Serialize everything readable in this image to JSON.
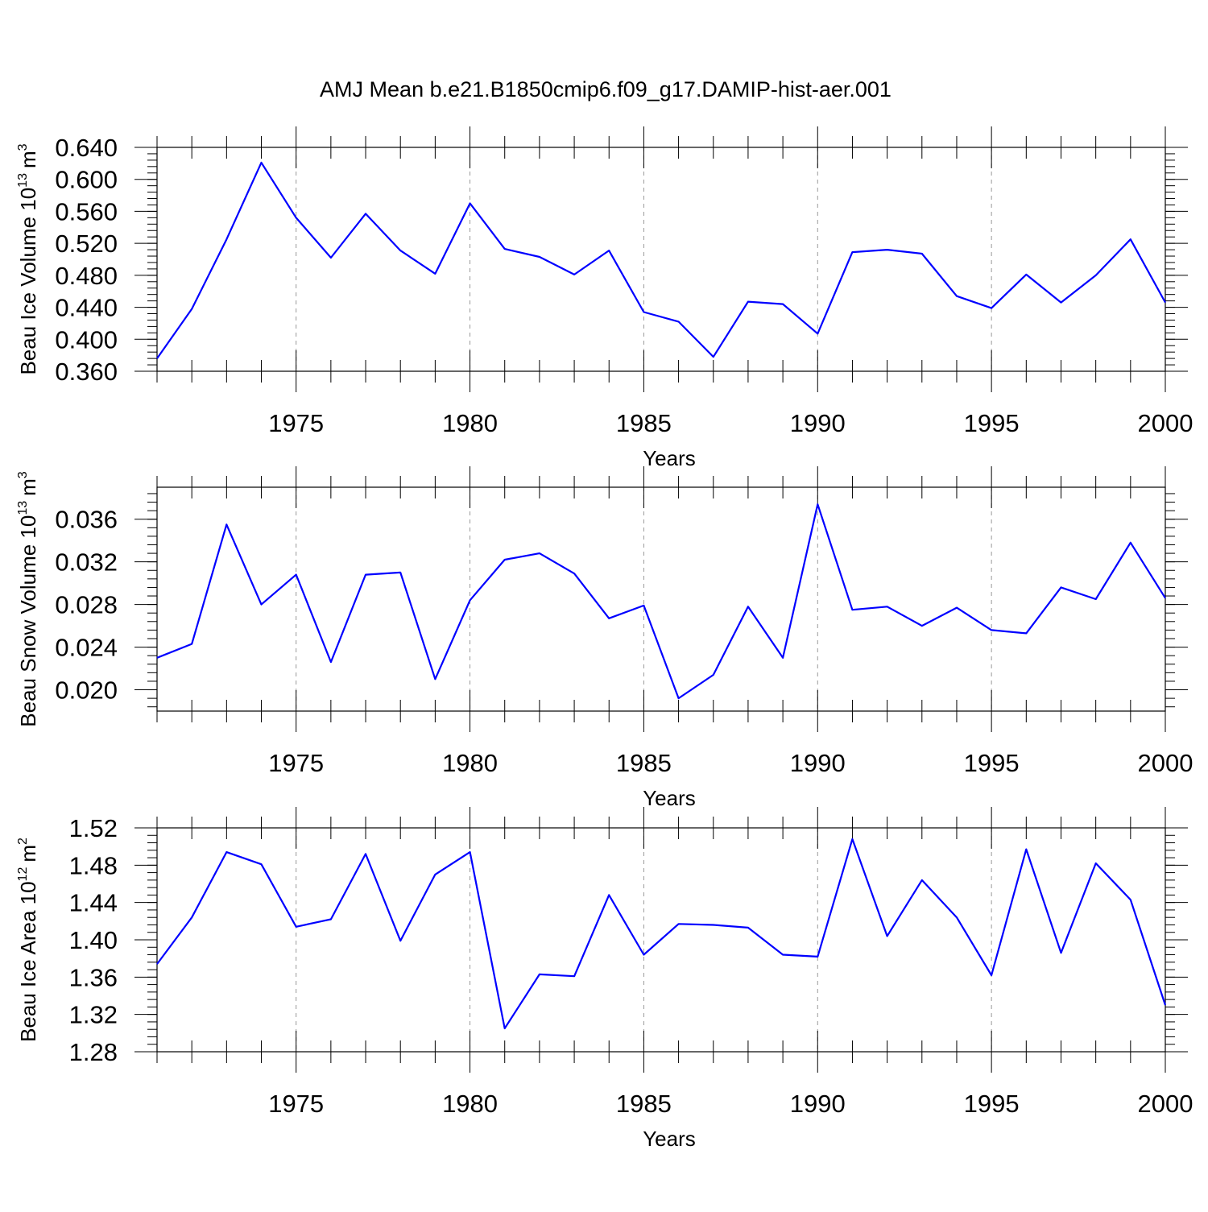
{
  "title": "AMJ Mean b.e21.B1850cmip6.f09_g17.DAMIP-hist-aer.001",
  "chart_data": [
    {
      "type": "line",
      "ylabel": "Beau Ice Volume 10",
      "ylabel_exp": "13",
      "ylabel_unit": "m",
      "ylabel_unit_exp": "3",
      "xlabel": "Years",
      "xlim": [
        1971,
        2000
      ],
      "ylim": [
        0.36,
        0.64
      ],
      "yticks": [
        0.36,
        0.4,
        0.44,
        0.48,
        0.52,
        0.56,
        0.6,
        0.64
      ],
      "ytick_labels": [
        "0.360",
        "0.400",
        "0.440",
        "0.480",
        "0.520",
        "0.560",
        "0.600",
        "0.640"
      ],
      "xticks": [
        1975,
        1980,
        1985,
        1990,
        1995,
        2000
      ],
      "xtick_labels": [
        "1975",
        "1980",
        "1985",
        "1990",
        "1995",
        "2000"
      ],
      "line_color": "#0000ff",
      "x": [
        1971,
        1972,
        1973,
        1974,
        1975,
        1976,
        1977,
        1978,
        1979,
        1980,
        1981,
        1982,
        1983,
        1984,
        1985,
        1986,
        1987,
        1988,
        1989,
        1990,
        1991,
        1992,
        1993,
        1994,
        1995,
        1996,
        1997,
        1998,
        1999,
        2000
      ],
      "values": [
        0.376,
        0.438,
        0.525,
        0.621,
        0.552,
        0.502,
        0.557,
        0.511,
        0.482,
        0.57,
        0.513,
        0.503,
        0.481,
        0.511,
        0.434,
        0.422,
        0.378,
        0.447,
        0.444,
        0.407,
        0.509,
        0.512,
        0.507,
        0.454,
        0.439,
        0.481,
        0.446,
        0.48,
        0.525,
        0.446
      ]
    },
    {
      "type": "line",
      "ylabel": "Beau Snow Volume 10",
      "ylabel_exp": "13",
      "ylabel_unit": "m",
      "ylabel_unit_exp": "3",
      "xlabel": "Years",
      "xlim": [
        1971,
        2000
      ],
      "ylim": [
        0.018,
        0.039
      ],
      "yticks": [
        0.02,
        0.024,
        0.028,
        0.032,
        0.036
      ],
      "ytick_labels": [
        "0.020",
        "0.024",
        "0.028",
        "0.032",
        "0.036"
      ],
      "xticks": [
        1975,
        1980,
        1985,
        1990,
        1995,
        2000
      ],
      "xtick_labels": [
        "1975",
        "1980",
        "1985",
        "1990",
        "1995",
        "2000"
      ],
      "line_color": "#0000ff",
      "x": [
        1971,
        1972,
        1973,
        1974,
        1975,
        1976,
        1977,
        1978,
        1979,
        1980,
        1981,
        1982,
        1983,
        1984,
        1985,
        1986,
        1987,
        1988,
        1989,
        1990,
        1991,
        1992,
        1993,
        1994,
        1995,
        1996,
        1997,
        1998,
        1999,
        2000
      ],
      "values": [
        0.023,
        0.0243,
        0.0355,
        0.028,
        0.0308,
        0.0226,
        0.0308,
        0.031,
        0.021,
        0.0284,
        0.0322,
        0.0328,
        0.0309,
        0.0267,
        0.0279,
        0.0192,
        0.0214,
        0.0278,
        0.023,
        0.0374,
        0.0275,
        0.0278,
        0.026,
        0.0277,
        0.0256,
        0.0253,
        0.0296,
        0.0285,
        0.0338,
        0.0286
      ]
    },
    {
      "type": "line",
      "ylabel": "Beau Ice Area 10",
      "ylabel_exp": "12",
      "ylabel_unit": "m",
      "ylabel_unit_exp": "2",
      "xlabel": "Years",
      "xlim": [
        1971,
        2000
      ],
      "ylim": [
        1.28,
        1.52
      ],
      "yticks": [
        1.28,
        1.32,
        1.36,
        1.4,
        1.44,
        1.48,
        1.52
      ],
      "ytick_labels": [
        "1.28",
        "1.32",
        "1.36",
        "1.40",
        "1.44",
        "1.48",
        "1.52"
      ],
      "xticks": [
        1975,
        1980,
        1985,
        1990,
        1995,
        2000
      ],
      "xtick_labels": [
        "1975",
        "1980",
        "1985",
        "1990",
        "1995",
        "2000"
      ],
      "line_color": "#0000ff",
      "x": [
        1971,
        1972,
        1973,
        1974,
        1975,
        1976,
        1977,
        1978,
        1979,
        1980,
        1981,
        1982,
        1983,
        1984,
        1985,
        1986,
        1987,
        1988,
        1989,
        1990,
        1991,
        1992,
        1993,
        1994,
        1995,
        1996,
        1997,
        1998,
        1999,
        2000
      ],
      "values": [
        1.374,
        1.424,
        1.494,
        1.481,
        1.414,
        1.422,
        1.492,
        1.399,
        1.47,
        1.494,
        1.305,
        1.363,
        1.361,
        1.448,
        1.384,
        1.417,
        1.416,
        1.413,
        1.384,
        1.382,
        1.508,
        1.404,
        1.464,
        1.424,
        1.362,
        1.497,
        1.386,
        1.482,
        1.443,
        1.33
      ]
    }
  ]
}
